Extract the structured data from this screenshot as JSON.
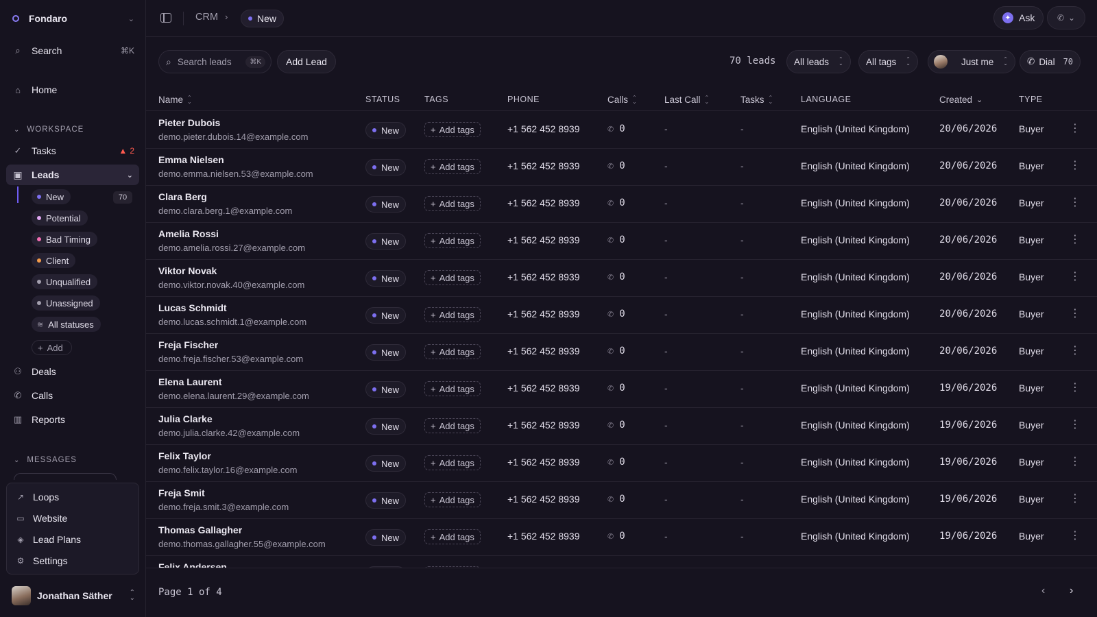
{
  "workspace": {
    "name": "Fondaro"
  },
  "sidebar": {
    "search_label": "Search",
    "search_shortcut": "⌘K",
    "home_label": "Home",
    "workspace_section": "WORKSPACE",
    "tasks_label": "Tasks",
    "tasks_badge": "2",
    "leads_label": "Leads",
    "statuses": [
      {
        "label": "New",
        "color": "#7d6ff0"
      },
      {
        "label": "Potential",
        "color": "#e0a7f2"
      },
      {
        "label": "Bad Timing",
        "color": "#f26db2"
      },
      {
        "label": "Client",
        "color": "#f29a4a"
      },
      {
        "label": "Unqualified",
        "color": "#a39fae"
      },
      {
        "label": "Unassigned",
        "color": "#a39fae"
      },
      {
        "label": "All statuses",
        "color": ""
      }
    ],
    "new_count": "70",
    "add_label": "Add",
    "deals_label": "Deals",
    "calls_label": "Calls",
    "reports_label": "Reports",
    "messages_section": "MESSAGES",
    "popup_items": [
      "Loops",
      "Website",
      "Lead Plans",
      "Settings"
    ],
    "user_name": "Jonathan Säther"
  },
  "topbar": {
    "crumb_root": "CRM",
    "crumb_current": "New",
    "ask_label": "Ask"
  },
  "toolbar": {
    "search_placeholder": "Search leads",
    "search_shortcut": "⌘K",
    "add_lead_label": "Add Lead",
    "lead_count": "70 leads",
    "filter_leads": "All leads",
    "filter_tags": "All tags",
    "filter_owner": "Just me",
    "dial_label": "Dial",
    "dial_count": "70"
  },
  "table": {
    "columns": {
      "name": "Name",
      "status": "STATUS",
      "tags": "TAGS",
      "phone": "PHONE",
      "calls": "Calls",
      "last_call": "Last Call",
      "tasks": "Tasks",
      "language": "LANGUAGE",
      "created": "Created",
      "type": "TYPE"
    },
    "add_tags_label": "Add tags",
    "rows": [
      {
        "name": "Pieter Dubois",
        "email": "demo.pieter.dubois.14@example.com",
        "status": "New",
        "phone": "+1 562 452 8939",
        "calls": "0",
        "last_call": "-",
        "tasks": "-",
        "language": "English (United Kingdom)",
        "created": "20/06/2026",
        "type": "Buyer"
      },
      {
        "name": "Emma Nielsen",
        "email": "demo.emma.nielsen.53@example.com",
        "status": "New",
        "phone": "+1 562 452 8939",
        "calls": "0",
        "last_call": "-",
        "tasks": "-",
        "language": "English (United Kingdom)",
        "created": "20/06/2026",
        "type": "Buyer"
      },
      {
        "name": "Clara Berg",
        "email": "demo.clara.berg.1@example.com",
        "status": "New",
        "phone": "+1 562 452 8939",
        "calls": "0",
        "last_call": "-",
        "tasks": "-",
        "language": "English (United Kingdom)",
        "created": "20/06/2026",
        "type": "Buyer"
      },
      {
        "name": "Amelia Rossi",
        "email": "demo.amelia.rossi.27@example.com",
        "status": "New",
        "phone": "+1 562 452 8939",
        "calls": "0",
        "last_call": "-",
        "tasks": "-",
        "language": "English (United Kingdom)",
        "created": "20/06/2026",
        "type": "Buyer"
      },
      {
        "name": "Viktor Novak",
        "email": "demo.viktor.novak.40@example.com",
        "status": "New",
        "phone": "+1 562 452 8939",
        "calls": "0",
        "last_call": "-",
        "tasks": "-",
        "language": "English (United Kingdom)",
        "created": "20/06/2026",
        "type": "Buyer"
      },
      {
        "name": "Lucas Schmidt",
        "email": "demo.lucas.schmidt.1@example.com",
        "status": "New",
        "phone": "+1 562 452 8939",
        "calls": "0",
        "last_call": "-",
        "tasks": "-",
        "language": "English (United Kingdom)",
        "created": "20/06/2026",
        "type": "Buyer"
      },
      {
        "name": "Freja Fischer",
        "email": "demo.freja.fischer.53@example.com",
        "status": "New",
        "phone": "+1 562 452 8939",
        "calls": "0",
        "last_call": "-",
        "tasks": "-",
        "language": "English (United Kingdom)",
        "created": "20/06/2026",
        "type": "Buyer"
      },
      {
        "name": "Elena Laurent",
        "email": "demo.elena.laurent.29@example.com",
        "status": "New",
        "phone": "+1 562 452 8939",
        "calls": "0",
        "last_call": "-",
        "tasks": "-",
        "language": "English (United Kingdom)",
        "created": "19/06/2026",
        "type": "Buyer"
      },
      {
        "name": "Julia Clarke",
        "email": "demo.julia.clarke.42@example.com",
        "status": "New",
        "phone": "+1 562 452 8939",
        "calls": "0",
        "last_call": "-",
        "tasks": "-",
        "language": "English (United Kingdom)",
        "created": "19/06/2026",
        "type": "Buyer"
      },
      {
        "name": "Felix Taylor",
        "email": "demo.felix.taylor.16@example.com",
        "status": "New",
        "phone": "+1 562 452 8939",
        "calls": "0",
        "last_call": "-",
        "tasks": "-",
        "language": "English (United Kingdom)",
        "created": "19/06/2026",
        "type": "Buyer"
      },
      {
        "name": "Freja Smit",
        "email": "demo.freja.smit.3@example.com",
        "status": "New",
        "phone": "+1 562 452 8939",
        "calls": "0",
        "last_call": "-",
        "tasks": "-",
        "language": "English (United Kingdom)",
        "created": "19/06/2026",
        "type": "Buyer"
      },
      {
        "name": "Thomas Gallagher",
        "email": "demo.thomas.gallagher.55@example.com",
        "status": "New",
        "phone": "+1 562 452 8939",
        "calls": "0",
        "last_call": "-",
        "tasks": "-",
        "language": "English (United Kingdom)",
        "created": "19/06/2026",
        "type": "Buyer"
      },
      {
        "name": "Felix Andersen",
        "email": "",
        "status": "New",
        "phone": "",
        "calls": "",
        "last_call": "",
        "tasks": "",
        "language": "",
        "created": "",
        "type": ""
      }
    ]
  },
  "footer": {
    "page_label": "Page 1 of 4"
  },
  "colors": {
    "accent": "#7d6ff0",
    "status_new": "#7d6ff0",
    "warning": "#ff5a4f"
  }
}
